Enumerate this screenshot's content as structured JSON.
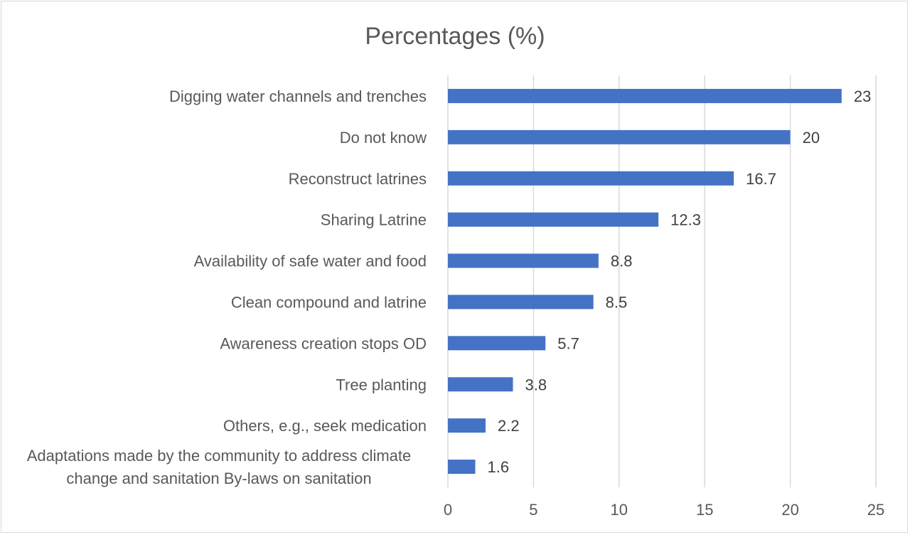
{
  "chart_data": {
    "type": "bar",
    "orientation": "horizontal",
    "title": "Percentages (%)",
    "xlabel": "",
    "ylabel": "",
    "xlim": [
      0,
      25
    ],
    "x_ticks": [
      "0",
      "5",
      "10",
      "15",
      "20",
      "25"
    ],
    "grid": "vertical",
    "legend": "none",
    "bar_color": "#4472C4",
    "categories": [
      "Digging water channels and trenches",
      "Do not know",
      "Reconstruct latrines",
      "Sharing Latrine",
      "Availability of safe water and food",
      "Clean compound and latrine",
      "Awareness creation stops OD",
      "Tree planting",
      "Others, e.g., seek medication",
      "Adaptations made by the community to address climate change and sanitation By-laws on sanitation"
    ],
    "category_lines": [
      [
        "Digging water channels and trenches"
      ],
      [
        "Do not know"
      ],
      [
        "Reconstruct latrines"
      ],
      [
        "Sharing Latrine"
      ],
      [
        "Availability of safe water and food"
      ],
      [
        "Clean compound and latrine"
      ],
      [
        "Awareness creation stops OD"
      ],
      [
        "Tree planting"
      ],
      [
        "Others, e.g., seek medication"
      ],
      [
        "Adaptations made by the community to address climate",
        "change and sanitation By-laws on sanitation"
      ]
    ],
    "values": [
      23,
      20,
      16.7,
      12.3,
      8.8,
      8.5,
      5.7,
      3.8,
      2.2,
      1.6
    ],
    "data_labels": [
      "23",
      "20",
      "16.7",
      "12.3",
      "8.8",
      "8.5",
      "5.7",
      "3.8",
      "2.2",
      "1.6"
    ]
  }
}
